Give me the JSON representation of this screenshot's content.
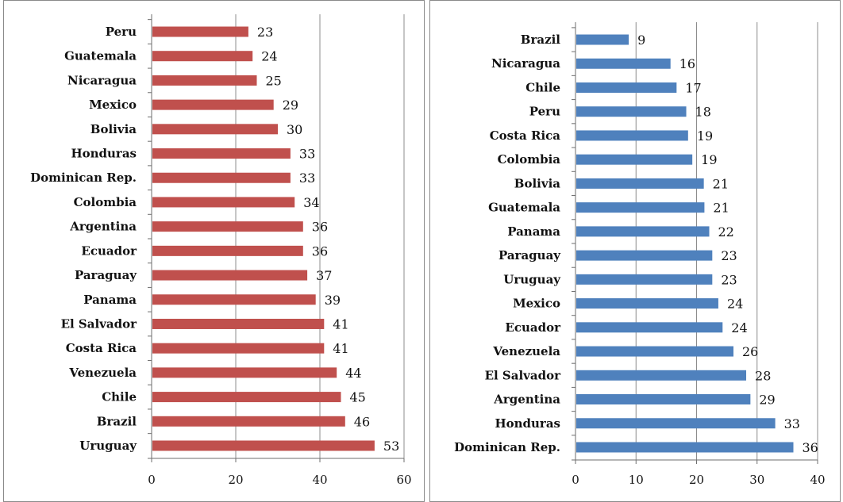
{
  "chart_data": [
    {
      "type": "bar",
      "orientation": "horizontal",
      "categories": [
        "Peru",
        "Guatemala",
        "Nicaragua",
        "Mexico",
        "Bolivia",
        "Honduras",
        "Dominican Rep.",
        "Colombia",
        "Argentina",
        "Ecuador",
        "Paraguay",
        "Panama",
        "El Salvador",
        "Costa Rica",
        "Venezuela",
        "Chile",
        "Brazil",
        "Uruguay"
      ],
      "values": [
        23,
        24,
        25,
        29,
        30,
        33,
        33,
        34,
        36,
        36,
        37,
        39,
        41,
        41,
        44,
        45,
        46,
        53
      ],
      "data_labels": [
        "23",
        "24",
        "25",
        "29",
        "30",
        "33",
        "33",
        "34",
        "36",
        "36",
        "37",
        "39",
        "41",
        "41",
        "44",
        "45",
        "46",
        "53"
      ],
      "xlim": [
        0,
        60
      ],
      "xticks": [
        0,
        20,
        40,
        60
      ],
      "xtick_labels": [
        "0",
        "20",
        "40",
        "60"
      ],
      "grid": "vertical",
      "legend": "none",
      "bar_color": "#c0504d"
    },
    {
      "type": "bar",
      "orientation": "horizontal",
      "categories": [
        "Brazil",
        "Nicaragua",
        "Chile",
        "Peru",
        "Costa Rica",
        "Colombia",
        "Bolivia",
        "Guatemala",
        "Panama",
        "Paraguay",
        "Uruguay",
        "Mexico",
        "Ecuador",
        "Venezuela",
        "El Salvador",
        "Argentina",
        "Honduras",
        "Dominican Rep."
      ],
      "values": [
        8.8,
        15.7,
        16.7,
        18.3,
        18.6,
        19.3,
        21.2,
        21.3,
        22.1,
        22.6,
        22.6,
        23.6,
        24.3,
        26.1,
        28.2,
        28.9,
        33.0,
        36.0
      ],
      "data_labels": [
        "9",
        "16",
        "17",
        "18",
        "19",
        "19",
        "21",
        "21",
        "22",
        "23",
        "23",
        "24",
        "24",
        "26",
        "28",
        "29",
        "33",
        "36"
      ],
      "xlim": [
        0,
        40
      ],
      "xticks": [
        0,
        10,
        20,
        30,
        40
      ],
      "xtick_labels": [
        "0",
        "10",
        "20",
        "30",
        "40"
      ],
      "grid": "vertical",
      "legend": "none",
      "bar_color": "#4f81bd"
    }
  ]
}
